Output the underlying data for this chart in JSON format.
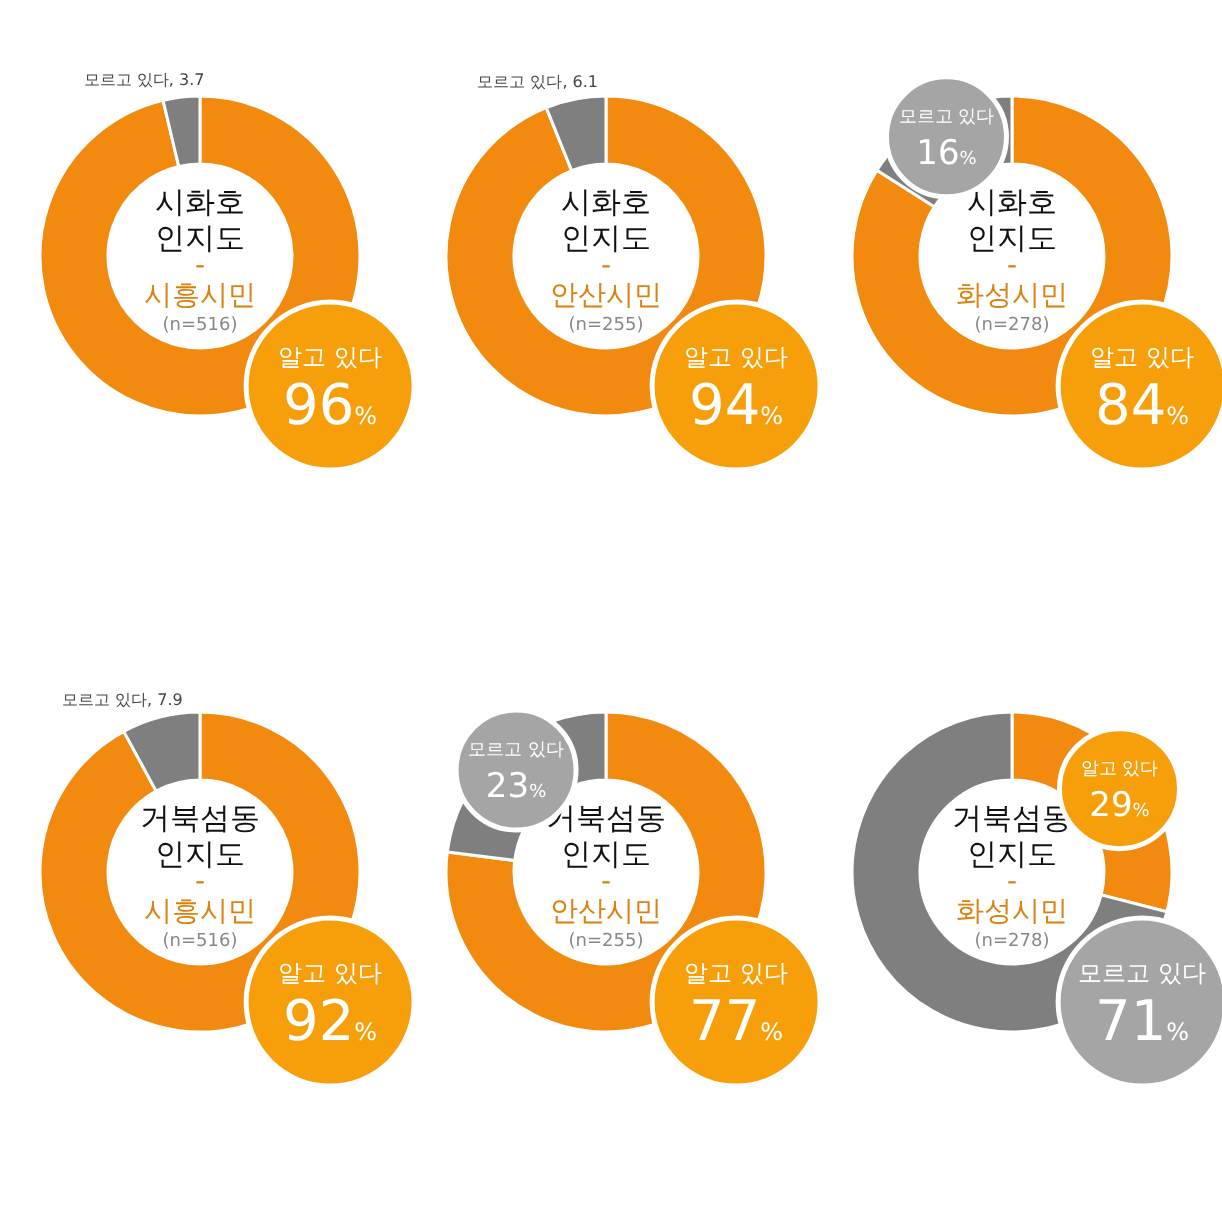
{
  "chart_data": [
    {
      "type": "donut",
      "title": "시화호 인지도",
      "subtitle": "- 시흥시민",
      "annotations": [
        "(n=516)"
      ],
      "categories": [
        "알고 있다",
        "모르고 있다"
      ],
      "values": [
        96,
        3.7
      ],
      "value_labels": [
        "96%",
        "3.7"
      ],
      "colors": [
        "#f28a10",
        "#7f7f7f"
      ]
    },
    {
      "type": "donut",
      "title": "시화호 인지도",
      "subtitle": "- 안산시민",
      "annotations": [
        "(n=255)"
      ],
      "categories": [
        "알고 있다",
        "모르고 있다"
      ],
      "values": [
        94,
        6.1
      ],
      "value_labels": [
        "94%",
        "6.1"
      ],
      "colors": [
        "#f28a10",
        "#7f7f7f"
      ]
    },
    {
      "type": "donut",
      "title": "시화호 인지도",
      "subtitle": "- 화성시민",
      "annotations": [
        "(n=278)"
      ],
      "categories": [
        "알고 있다",
        "모르고 있다"
      ],
      "values": [
        84,
        16
      ],
      "value_labels": [
        "84%",
        "16%"
      ],
      "colors": [
        "#f28a10",
        "#7f7f7f"
      ]
    },
    {
      "type": "donut",
      "title": "거북섬동 인지도",
      "subtitle": "- 시흥시민",
      "annotations": [
        "(n=516)"
      ],
      "categories": [
        "알고 있다",
        "모르고 있다"
      ],
      "values": [
        92,
        7.9
      ],
      "value_labels": [
        "92%",
        "7.9"
      ],
      "colors": [
        "#f28a10",
        "#7f7f7f"
      ]
    },
    {
      "type": "donut",
      "title": "거북섬동 인지도",
      "subtitle": "- 안산시민",
      "annotations": [
        "(n=255)"
      ],
      "categories": [
        "알고 있다",
        "모르고 있다"
      ],
      "values": [
        77,
        23
      ],
      "value_labels": [
        "77%",
        "23%"
      ],
      "colors": [
        "#f28a10",
        "#7f7f7f"
      ]
    },
    {
      "type": "donut",
      "title": "거북섬동 인지도",
      "subtitle": "- 화성시민",
      "annotations": [
        "(n=278)"
      ],
      "categories": [
        "알고 있다",
        "모르고 있다"
      ],
      "values": [
        29,
        71
      ],
      "value_labels": [
        "29%",
        "71%"
      ],
      "colors": [
        "#f28a10",
        "#7f7f7f"
      ]
    }
  ]
}
